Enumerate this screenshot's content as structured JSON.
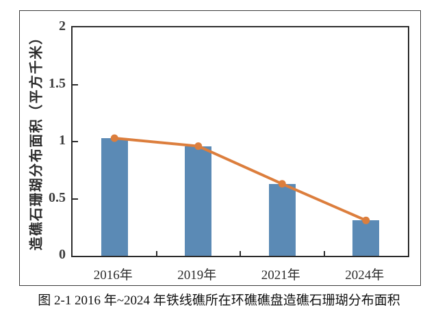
{
  "figure": {
    "caption": "图 2-1 2016 年~2024 年铁线礁所在环礁礁盘造礁石珊瑚分布面积"
  },
  "chart_data": {
    "type": "bar",
    "title": "",
    "categories": [
      "2016年",
      "2019年",
      "2021年",
      "2024年"
    ],
    "series": [
      {
        "type": "bar",
        "values": [
          1.03,
          0.96,
          0.63,
          0.31
        ]
      },
      {
        "type": "line",
        "values": [
          1.03,
          0.96,
          0.63,
          0.31
        ]
      }
    ],
    "xlabel": "",
    "ylabel": "造礁石珊瑚分布面积（平方千米）",
    "ylim": [
      0,
      2
    ],
    "yticks": [
      0,
      0.5,
      1,
      1.5,
      2
    ],
    "ytick_labels": [
      "0",
      "0.5",
      "1",
      "1.5",
      "2"
    ],
    "grid": false,
    "legend": "none",
    "colors": {
      "bar": "#5B8AB5",
      "line": "#DC7E3D",
      "axis": "#2B2B2B",
      "frame": "#3A3A3A"
    }
  }
}
